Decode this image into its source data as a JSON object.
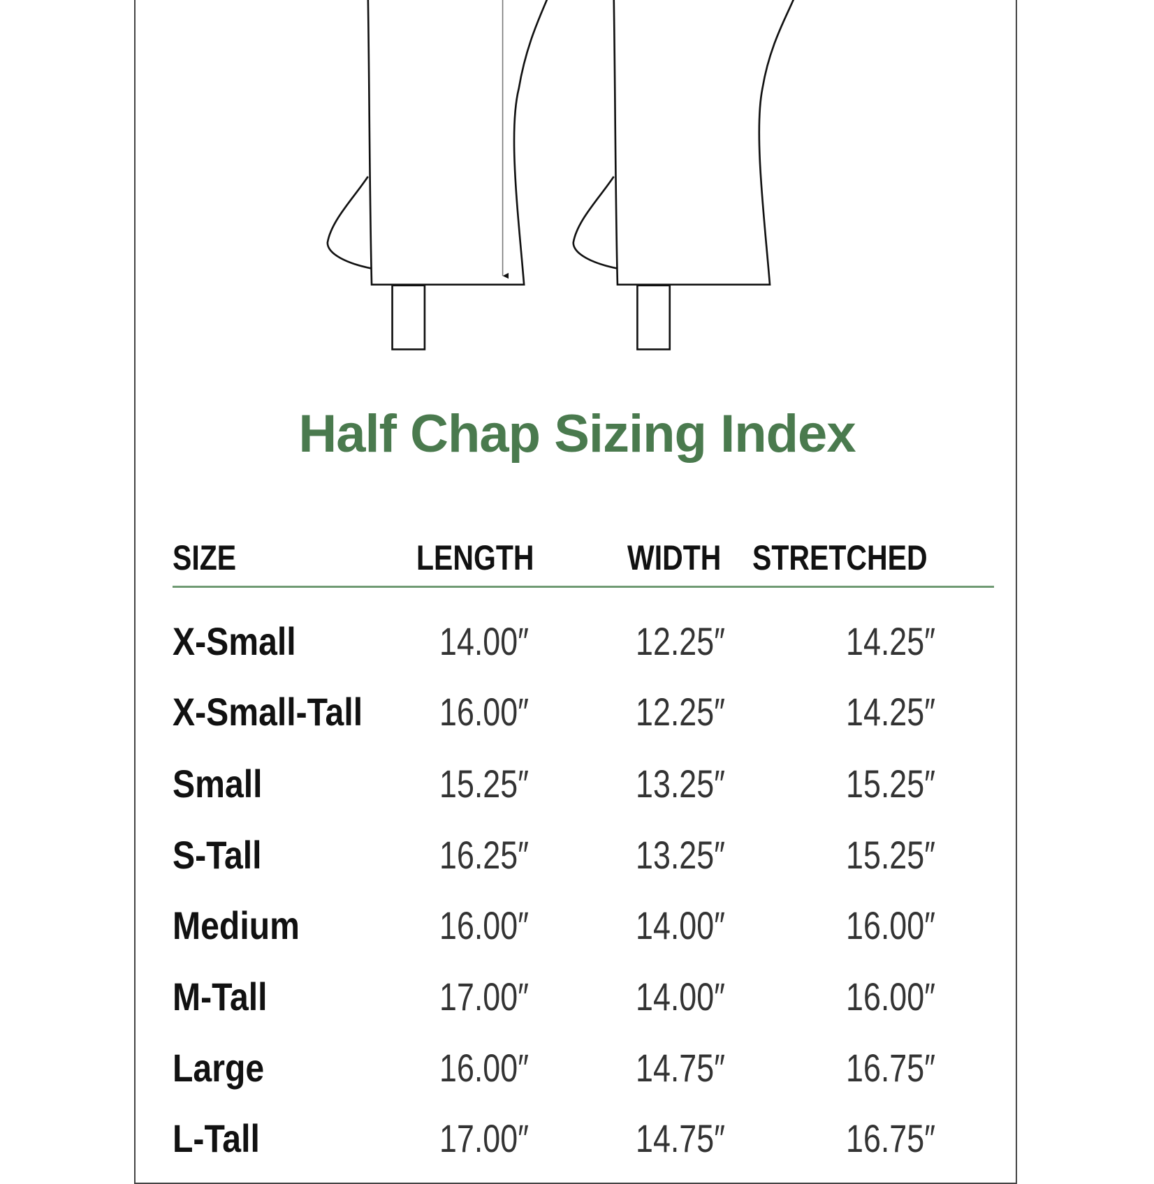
{
  "title": "Half Chap Sizing Index",
  "colors": {
    "title": "#4a7a4e",
    "rule": "#6f9a73",
    "text": "#111111"
  },
  "illustration": "two half chaps with length measurement arrow",
  "table": {
    "headers": [
      "SIZE",
      "LENGTH",
      "WIDTH",
      "STRETCHED"
    ],
    "rows": [
      {
        "size": "X-Small",
        "length": "14.00″",
        "width": "12.25″",
        "stretched": "14.25″"
      },
      {
        "size": "X-Small-Tall",
        "length": "16.00″",
        "width": "12.25″",
        "stretched": "14.25″"
      },
      {
        "size": "Small",
        "length": "15.25″",
        "width": "13.25″",
        "stretched": "15.25″"
      },
      {
        "size": "S-Tall",
        "length": "16.25″",
        "width": "13.25″",
        "stretched": "15.25″"
      },
      {
        "size": "Medium",
        "length": "16.00″",
        "width": "14.00″",
        "stretched": "16.00″"
      },
      {
        "size": "M-Tall",
        "length": "17.00″",
        "width": "14.00″",
        "stretched": "16.00″"
      },
      {
        "size": "Large",
        "length": "16.00″",
        "width": "14.75″",
        "stretched": "16.75″"
      },
      {
        "size": "L-Tall",
        "length": "17.00″",
        "width": "14.75″",
        "stretched": "16.75″"
      }
    ]
  }
}
